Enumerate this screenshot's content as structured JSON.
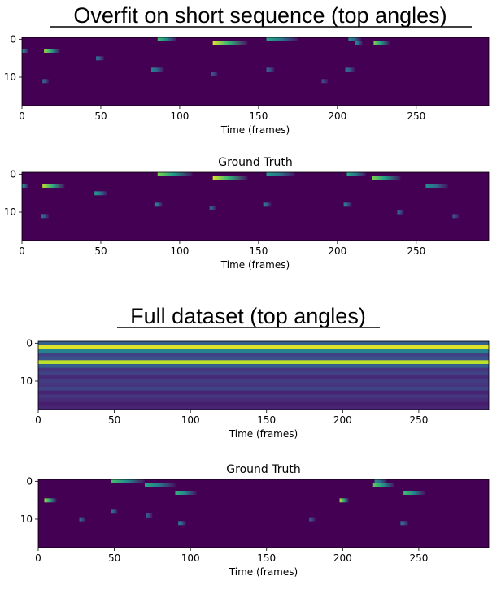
{
  "sections": [
    {
      "title": "Overfit on short sequence (top angles)"
    },
    {
      "title": "Full dataset (top angles)"
    }
  ],
  "colors": {
    "background": "#440154",
    "viridis": [
      "#440154",
      "#482878",
      "#3e4989",
      "#31688e",
      "#26828e",
      "#1f9e89",
      "#35b779",
      "#6ece58",
      "#b5de2b",
      "#fde725"
    ]
  },
  "chart_data": [
    {
      "type": "heatmap",
      "title": "",
      "xlabel": "Time (frames)",
      "ylabel": "",
      "x_ticks": [
        0,
        50,
        100,
        150,
        200,
        250
      ],
      "y_ticks": [
        0,
        10
      ],
      "xlim": [
        0,
        296
      ],
      "ylim": [
        17.5,
        -0.5
      ],
      "rows": 18,
      "cols": 296,
      "streaks": [
        {
          "row": 0,
          "start": 86,
          "length": 12,
          "value": 0.7
        },
        {
          "row": 0,
          "start": 155,
          "length": 20,
          "value": 0.6
        },
        {
          "row": 0,
          "start": 207,
          "length": 8,
          "value": 0.5
        },
        {
          "row": 1,
          "start": 121,
          "length": 22,
          "value": 0.95
        },
        {
          "row": 1,
          "start": 223,
          "length": 10,
          "value": 0.8
        },
        {
          "row": 1,
          "start": 211,
          "length": 5,
          "value": 0.5
        },
        {
          "row": 3,
          "start": 14,
          "length": 10,
          "value": 0.85
        },
        {
          "row": 3,
          "start": 0,
          "length": 4,
          "value": 0.45
        },
        {
          "row": 5,
          "start": 47,
          "length": 5,
          "value": 0.4
        },
        {
          "row": 8,
          "start": 82,
          "length": 8,
          "value": 0.45
        },
        {
          "row": 8,
          "start": 155,
          "length": 5,
          "value": 0.35
        },
        {
          "row": 8,
          "start": 205,
          "length": 6,
          "value": 0.4
        },
        {
          "row": 9,
          "start": 120,
          "length": 4,
          "value": 0.3
        },
        {
          "row": 11,
          "start": 13,
          "length": 4,
          "value": 0.35
        },
        {
          "row": 11,
          "start": 190,
          "length": 4,
          "value": 0.25
        }
      ]
    },
    {
      "type": "heatmap",
      "title": "Ground Truth",
      "xlabel": "Time (frames)",
      "ylabel": "",
      "x_ticks": [
        0,
        50,
        100,
        150,
        200,
        250
      ],
      "y_ticks": [
        0,
        10
      ],
      "xlim": [
        0,
        296
      ],
      "ylim": [
        17.5,
        -0.5
      ],
      "rows": 18,
      "cols": 296,
      "streaks": [
        {
          "row": 0,
          "start": 86,
          "length": 22,
          "value": 0.8
        },
        {
          "row": 0,
          "start": 155,
          "length": 18,
          "value": 0.55
        },
        {
          "row": 0,
          "start": 206,
          "length": 12,
          "value": 0.6
        },
        {
          "row": 1,
          "start": 121,
          "length": 22,
          "value": 0.95
        },
        {
          "row": 1,
          "start": 222,
          "length": 18,
          "value": 0.8
        },
        {
          "row": 3,
          "start": 13,
          "length": 14,
          "value": 0.9
        },
        {
          "row": 3,
          "start": 0,
          "length": 4,
          "value": 0.5
        },
        {
          "row": 3,
          "start": 256,
          "length": 14,
          "value": 0.5
        },
        {
          "row": 5,
          "start": 46,
          "length": 8,
          "value": 0.55
        },
        {
          "row": 8,
          "start": 84,
          "length": 5,
          "value": 0.5
        },
        {
          "row": 8,
          "start": 153,
          "length": 5,
          "value": 0.45
        },
        {
          "row": 8,
          "start": 204,
          "length": 5,
          "value": 0.45
        },
        {
          "row": 9,
          "start": 119,
          "length": 4,
          "value": 0.35
        },
        {
          "row": 10,
          "start": 238,
          "length": 4,
          "value": 0.35
        },
        {
          "row": 11,
          "start": 12,
          "length": 5,
          "value": 0.4
        },
        {
          "row": 11,
          "start": 273,
          "length": 4,
          "value": 0.3
        }
      ]
    },
    {
      "type": "heatmap",
      "title": "",
      "xlabel": "Time (frames)",
      "ylabel": "",
      "x_ticks": [
        0,
        50,
        100,
        150,
        200,
        250
      ],
      "y_ticks": [
        0,
        10
      ],
      "xlim": [
        0,
        296
      ],
      "ylim": [
        17.5,
        -0.5
      ],
      "rows": 18,
      "cols": 296,
      "row_values": [
        0.3,
        0.95,
        0.45,
        0.2,
        0.25,
        0.9,
        0.3,
        0.15,
        0.2,
        0.12,
        0.18,
        0.15,
        0.2,
        0.1,
        0.15,
        0.12,
        0.08,
        0.1
      ]
    },
    {
      "type": "heatmap",
      "title": "Ground Truth",
      "xlabel": "Time (frames)",
      "ylabel": "",
      "x_ticks": [
        0,
        50,
        100,
        150,
        200,
        250
      ],
      "y_ticks": [
        0,
        10
      ],
      "xlim": [
        0,
        296
      ],
      "ylim": [
        17.5,
        -0.5
      ],
      "rows": 18,
      "cols": 296,
      "streaks": [
        {
          "row": 0,
          "start": 48,
          "length": 22,
          "value": 0.7
        },
        {
          "row": 0,
          "start": 221,
          "length": 8,
          "value": 0.5
        },
        {
          "row": 1,
          "start": 70,
          "length": 20,
          "value": 0.6
        },
        {
          "row": 1,
          "start": 220,
          "length": 14,
          "value": 0.75
        },
        {
          "row": 3,
          "start": 90,
          "length": 14,
          "value": 0.65
        },
        {
          "row": 3,
          "start": 240,
          "length": 14,
          "value": 0.7
        },
        {
          "row": 5,
          "start": 4,
          "length": 8,
          "value": 0.85
        },
        {
          "row": 5,
          "start": 198,
          "length": 6,
          "value": 0.9
        },
        {
          "row": 8,
          "start": 48,
          "length": 4,
          "value": 0.4
        },
        {
          "row": 9,
          "start": 71,
          "length": 4,
          "value": 0.3
        },
        {
          "row": 10,
          "start": 27,
          "length": 4,
          "value": 0.35
        },
        {
          "row": 10,
          "start": 178,
          "length": 4,
          "value": 0.3
        },
        {
          "row": 11,
          "start": 92,
          "length": 5,
          "value": 0.45
        },
        {
          "row": 11,
          "start": 238,
          "length": 5,
          "value": 0.4
        }
      ]
    }
  ]
}
